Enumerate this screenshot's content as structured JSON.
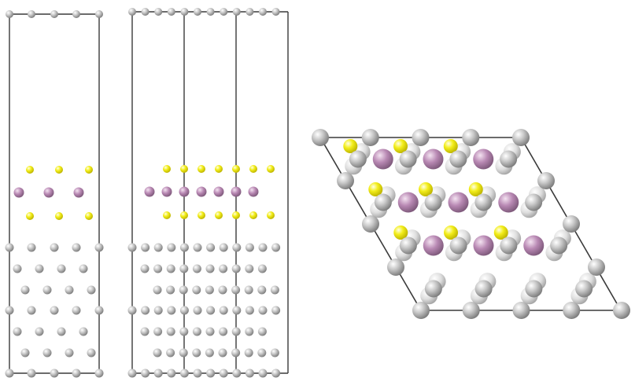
{
  "atom_colors": {
    "substrate_light": "#d6d6d6",
    "substrate_dark": "#8c8c8c",
    "chalcogen": "#f4ef1e",
    "metal": "#b987b4",
    "cell_line": "#3a3a3a"
  },
  "panels": [
    {
      "id": "side-view-narrow",
      "view": "side"
    },
    {
      "id": "side-view-wide",
      "view": "side"
    },
    {
      "id": "top-view",
      "view": "top"
    }
  ]
}
